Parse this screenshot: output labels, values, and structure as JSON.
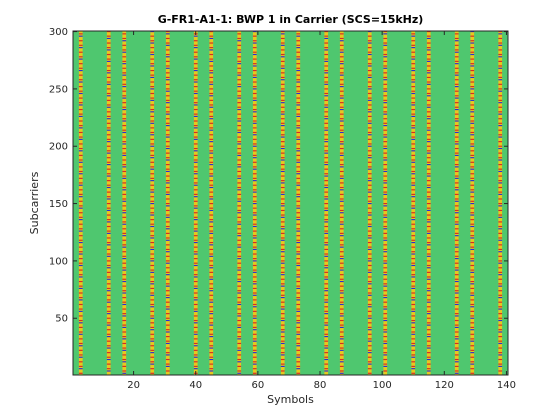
{
  "chart_data": {
    "type": "heatmap",
    "title": "G-FR1-A1-1: BWP 1 in Carrier (SCS=15kHz)",
    "xlabel": "Symbols",
    "ylabel": "Subcarriers",
    "xlim": [
      0.5,
      140.5
    ],
    "ylim": [
      0.5,
      300.5
    ],
    "xticks": [
      20,
      40,
      60,
      80,
      100,
      120,
      140
    ],
    "yticks": [
      50,
      100,
      150,
      200,
      250,
      300
    ],
    "background_value": "green (empty resource elements)",
    "colors": {
      "background": "#4fc76f",
      "red": "#d42a2a",
      "yellow": "#e6c81f",
      "blue": "#2b2bd6"
    },
    "signal_symbol_columns": [
      3,
      12,
      17,
      26,
      31,
      40,
      45,
      54,
      59,
      68,
      73,
      82,
      87,
      96,
      101,
      110,
      115,
      124,
      129,
      138
    ],
    "grid": false,
    "colorbar": false
  }
}
